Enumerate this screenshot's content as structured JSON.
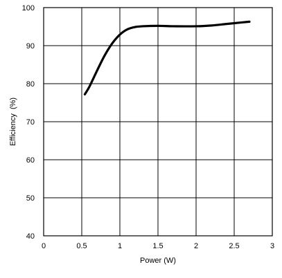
{
  "chart_data": {
    "type": "line",
    "title": "",
    "xlabel": "Power (W)",
    "ylabel": "Efficiency  (%)",
    "xlim": [
      0,
      3
    ],
    "ylim": [
      40,
      100
    ],
    "x_ticks": [
      0,
      0.5,
      1,
      1.5,
      2,
      2.5,
      3
    ],
    "x_tick_labels": [
      "0",
      "0.5",
      "1",
      "1.5",
      "2",
      "2.5",
      "3"
    ],
    "y_ticks": [
      40,
      50,
      60,
      70,
      80,
      90,
      100
    ],
    "y_tick_labels": [
      "40",
      "50",
      "60",
      "70",
      "80",
      "90",
      "100"
    ],
    "grid": true,
    "legend": "none",
    "series": [
      {
        "color": "#000000",
        "points": [
          [
            0.54,
            77.2
          ],
          [
            0.6,
            79.2
          ],
          [
            0.7,
            83.4
          ],
          [
            0.8,
            87.4
          ],
          [
            0.9,
            90.6
          ],
          [
            1.0,
            92.9
          ],
          [
            1.1,
            94.3
          ],
          [
            1.2,
            94.9
          ],
          [
            1.3,
            95.1
          ],
          [
            1.5,
            95.2
          ],
          [
            1.7,
            95.1
          ],
          [
            2.0,
            95.1
          ],
          [
            2.2,
            95.3
          ],
          [
            2.4,
            95.7
          ],
          [
            2.6,
            96.1
          ],
          [
            2.7,
            96.3
          ]
        ]
      }
    ]
  }
}
